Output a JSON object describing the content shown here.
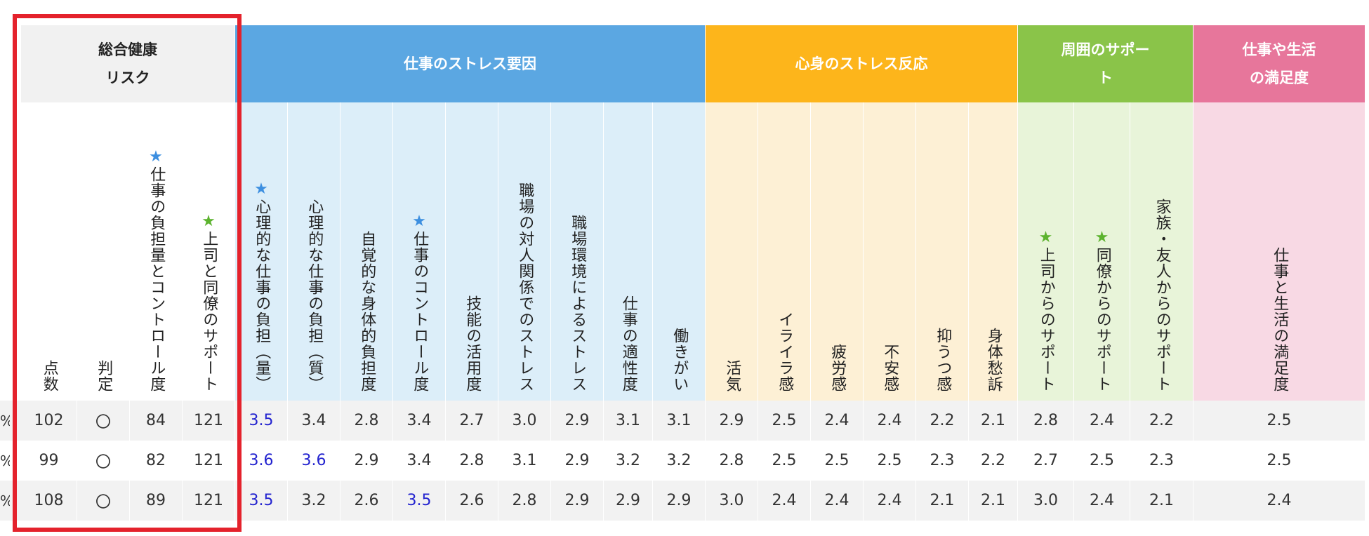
{
  "colors": {
    "sogo_band": "#f1f1f1",
    "sogo_sub": "#ffffff",
    "stress_band": "#5ba7e2",
    "stress_sub": "#dceef9",
    "reaction_band": "#fdb51b",
    "reaction_sub": "#fdf0d5",
    "support_band": "#8ac449",
    "support_sub": "#e8f4d9",
    "satisfaction_band": "#e7769b",
    "satisfaction_sub": "#f8d9e4",
    "row_even": "#f2f2f2",
    "row_odd": "#ffffff",
    "highlight_text": "#2323cf",
    "selection_box": "#e4222c"
  },
  "groups": [
    {
      "key": "sogo",
      "lines": [
        "総合健康",
        "リスク"
      ]
    },
    {
      "key": "stress",
      "lines": [
        "仕事のストレス要因"
      ]
    },
    {
      "key": "reaction",
      "lines": [
        "心身のストレス反応"
      ]
    },
    {
      "key": "support",
      "lines": [
        "周囲のサポー",
        "ト"
      ]
    },
    {
      "key": "satisfaction",
      "lines": [
        "仕事や生活",
        "の満足度"
      ]
    }
  ],
  "columns": [
    {
      "label": "点数"
    },
    {
      "label": "判定"
    },
    {
      "label": "仕事の負担量とコントロール度",
      "star": "blue"
    },
    {
      "label": "上司と同僚のサポート",
      "star": "green"
    },
    {
      "label": "心理的な仕事の負担",
      "paren": "（量）",
      "star": "blue"
    },
    {
      "label": "心理的な仕事の負担",
      "paren": "（質）"
    },
    {
      "label": "自覚的な身体的負担度"
    },
    {
      "label": "仕事のコントロール度",
      "star": "blue"
    },
    {
      "label": "技能の活用度"
    },
    {
      "label": "職場の対人関係でのストレス"
    },
    {
      "label": "職場環境によるストレス"
    },
    {
      "label": "仕事の適性度"
    },
    {
      "label": "働きがい"
    },
    {
      "label": "活気"
    },
    {
      "label": "イライラ感"
    },
    {
      "label": "疲労感"
    },
    {
      "label": "不安感"
    },
    {
      "label": "抑うつ感"
    },
    {
      "label": "身体愁訴"
    },
    {
      "label": "上司からのサポート",
      "star": "green"
    },
    {
      "label": "同僚からのサポート",
      "star": "green"
    },
    {
      "label": "家族・友人からのサポート"
    },
    {
      "label": "仕事と生活の満足度"
    }
  ],
  "star_symbol": "★",
  "rows": [
    {
      "lead": "%",
      "values": [
        "102",
        "〇",
        "84",
        "121",
        "3.5",
        "3.4",
        "2.8",
        "3.4",
        "2.7",
        "3.0",
        "2.9",
        "3.1",
        "3.1",
        "2.9",
        "2.5",
        "2.4",
        "2.4",
        "2.2",
        "2.1",
        "2.8",
        "2.4",
        "2.2",
        "2.5"
      ],
      "highlight": [
        4
      ]
    },
    {
      "lead": "%",
      "values": [
        "99",
        "〇",
        "82",
        "121",
        "3.6",
        "3.6",
        "2.9",
        "3.4",
        "2.8",
        "3.1",
        "2.9",
        "3.2",
        "3.2",
        "2.8",
        "2.5",
        "2.5",
        "2.5",
        "2.3",
        "2.2",
        "2.7",
        "2.5",
        "2.3",
        "2.5"
      ],
      "highlight": [
        4,
        5
      ]
    },
    {
      "lead": "%",
      "values": [
        "108",
        "〇",
        "89",
        "121",
        "3.5",
        "3.2",
        "2.6",
        "3.5",
        "2.6",
        "2.8",
        "2.9",
        "2.9",
        "2.9",
        "3.0",
        "2.4",
        "2.4",
        "2.4",
        "2.1",
        "2.1",
        "3.0",
        "2.4",
        "2.1",
        "2.4"
      ],
      "highlight": [
        4,
        7
      ]
    }
  ]
}
